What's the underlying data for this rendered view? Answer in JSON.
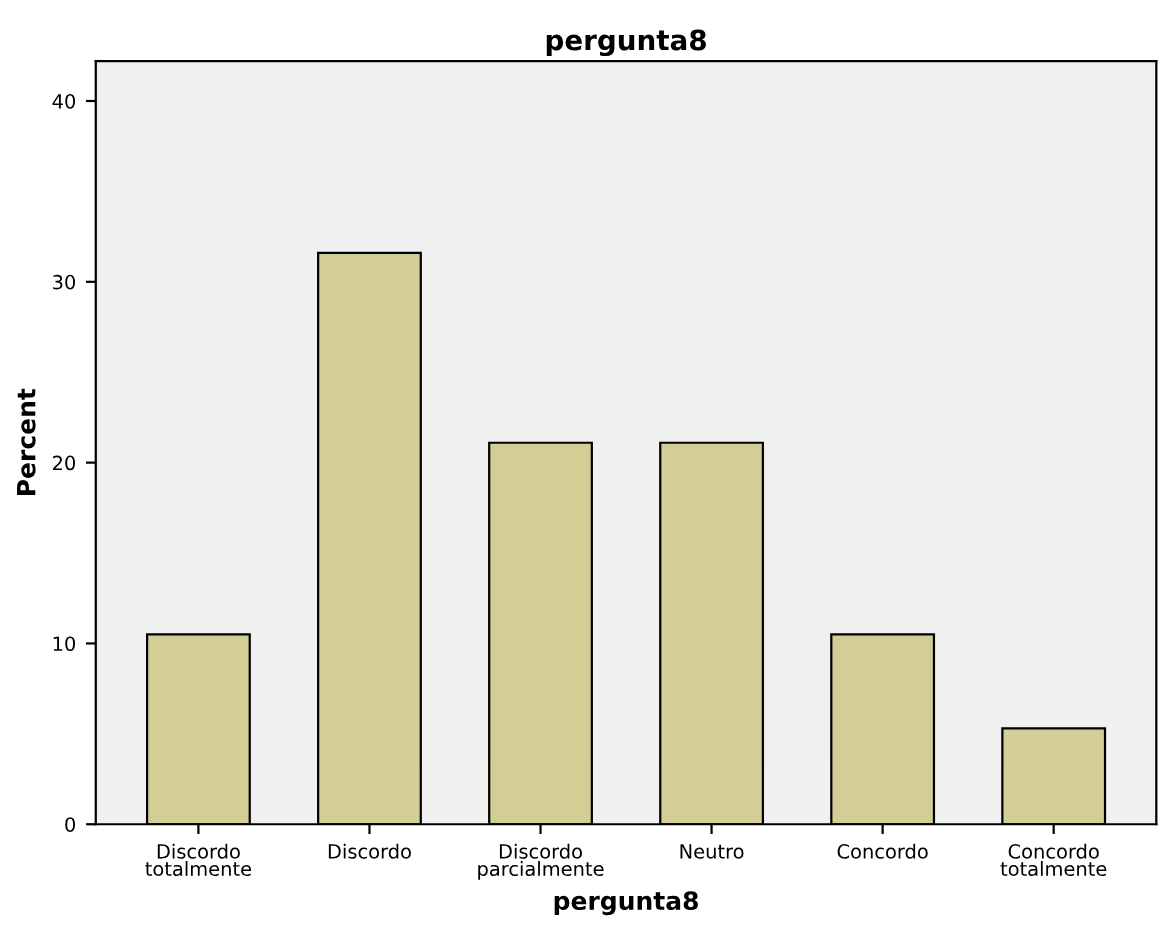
{
  "chart_data": {
    "type": "bar",
    "title": "pergunta8",
    "xlabel": "pergunta8",
    "ylabel": "Percent",
    "categories": [
      "Discordo\ntotalmente",
      "Discordo",
      "Discordo\nparcialmente",
      "Neutro",
      "Concordo",
      "Concordo\ntotalmente"
    ],
    "values": [
      10.5,
      31.6,
      21.1,
      21.1,
      10.5,
      5.3
    ],
    "color": "#d3ce96",
    "ylim": [
      0,
      42.2
    ],
    "yticks": [
      0,
      10,
      20,
      30,
      40
    ],
    "grid": false,
    "legend": false
  }
}
